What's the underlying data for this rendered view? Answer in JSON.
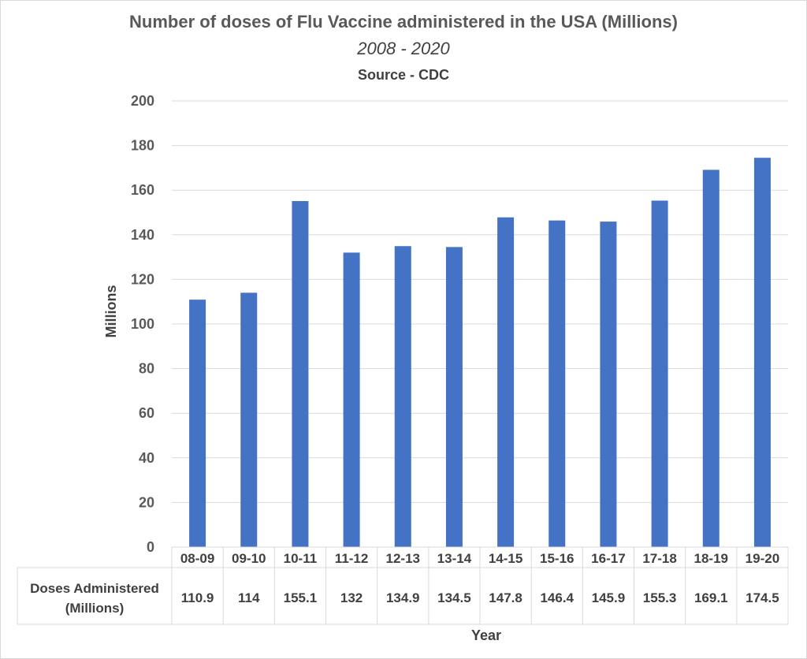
{
  "chart_data": {
    "type": "bar",
    "title": "Number of doses of Flu Vaccine administered in the USA (Millions)",
    "subtitle": "2008 - 2020",
    "source": "Source - CDC",
    "xlabel": "Year",
    "ylabel": "Millions",
    "ylim": [
      0,
      200
    ],
    "yticks": [
      0,
      20,
      40,
      60,
      80,
      100,
      120,
      140,
      160,
      180,
      200
    ],
    "grid": true,
    "bar_color": "#4472c4",
    "categories": [
      "08-09",
      "09-10",
      "10-11",
      "11-12",
      "12-13",
      "13-14",
      "14-15",
      "15-16",
      "16-17",
      "17-18",
      "18-19",
      "19-20"
    ],
    "series": [
      {
        "name": "Doses Administered (Millions)",
        "name_lines": [
          "Doses Administered",
          "(Millions)"
        ],
        "values": [
          110.9,
          114,
          155.1,
          132,
          134.9,
          134.5,
          147.8,
          146.4,
          145.9,
          155.3,
          169.1,
          174.5
        ],
        "value_labels": [
          "110.9",
          "114",
          "155.1",
          "132",
          "134.9",
          "134.5",
          "147.8",
          "146.4",
          "145.9",
          "155.3",
          "169.1",
          "174.5"
        ]
      }
    ],
    "data_table": true
  }
}
